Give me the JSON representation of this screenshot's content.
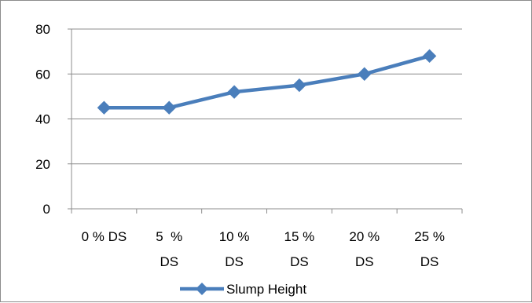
{
  "chart_data": {
    "type": "line",
    "categories": [
      [
        "0 % DS"
      ],
      [
        "5  %",
        "DS"
      ],
      [
        "10 %",
        "DS"
      ],
      [
        "15 %",
        "DS"
      ],
      [
        "20 %",
        "DS"
      ],
      [
        "25 %",
        "DS"
      ]
    ],
    "series": [
      {
        "name": "Slump Height",
        "values": [
          45,
          45,
          52,
          55,
          60,
          68
        ],
        "color": "#4a7ebb"
      }
    ],
    "yticks": [
      0,
      20,
      40,
      60,
      80
    ],
    "ylim": [
      0,
      80
    ],
    "grid": true,
    "legend": "bottom",
    "marker": "diamond",
    "title": "",
    "xlabel": "",
    "ylabel": ""
  }
}
